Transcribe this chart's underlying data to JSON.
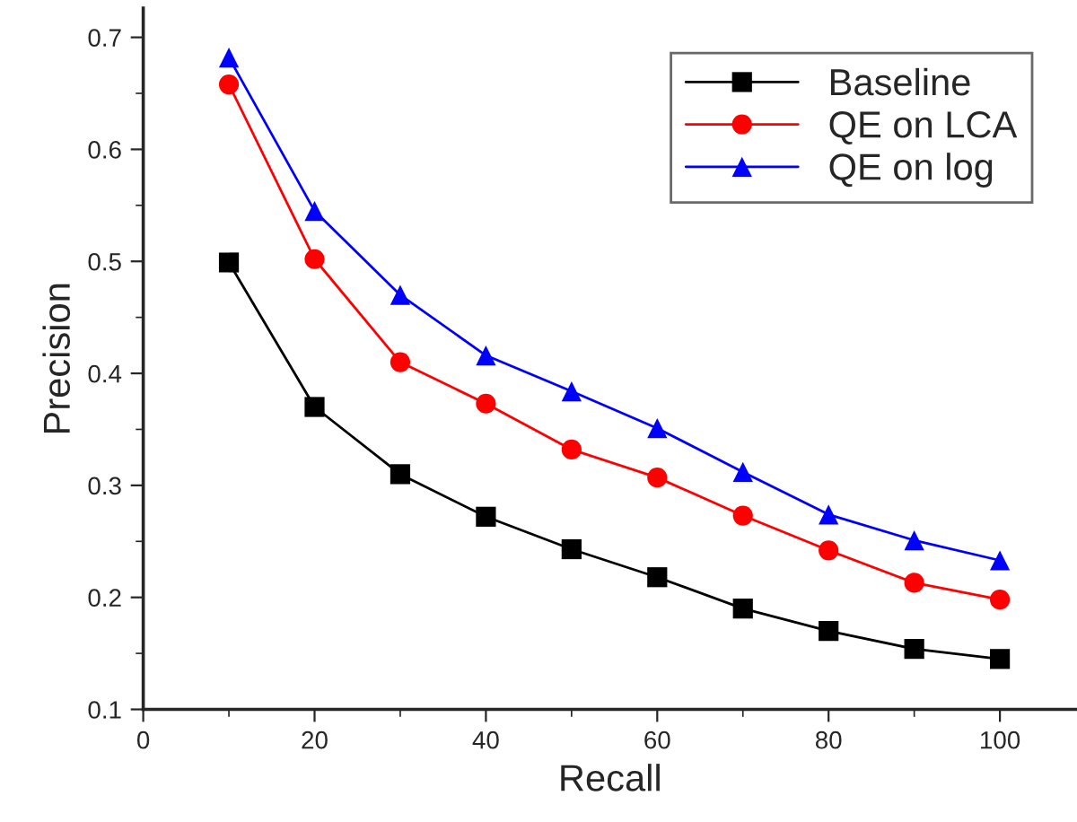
{
  "chart_data": {
    "type": "line",
    "xlabel": "Recall",
    "ylabel": "Precision",
    "x": [
      10,
      20,
      30,
      40,
      50,
      60,
      70,
      80,
      90,
      100
    ],
    "series": [
      {
        "name": "Baseline",
        "color": "#000000",
        "marker": "square",
        "values": [
          0.499,
          0.37,
          0.31,
          0.272,
          0.243,
          0.218,
          0.19,
          0.17,
          0.154,
          0.145
        ]
      },
      {
        "name": "QE on LCA",
        "color": "#ff0000",
        "marker": "circle",
        "values": [
          0.658,
          0.502,
          0.41,
          0.373,
          0.332,
          0.307,
          0.273,
          0.242,
          0.213,
          0.198
        ]
      },
      {
        "name": "QE on log",
        "color": "#0000ff",
        "marker": "triangle",
        "values": [
          0.682,
          0.545,
          0.47,
          0.416,
          0.384,
          0.351,
          0.312,
          0.274,
          0.251,
          0.233
        ]
      }
    ],
    "xlim": [
      0,
      109
    ],
    "xticks": [
      0,
      20,
      40,
      60,
      80,
      100
    ],
    "ylim": [
      0.1,
      0.726
    ],
    "yticks": [
      0.1,
      0.2,
      0.3,
      0.4,
      0.5,
      0.6,
      0.7
    ],
    "grid": false,
    "legend": "top right",
    "line_style": "solid"
  }
}
